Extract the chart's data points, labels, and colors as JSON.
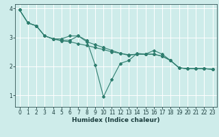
{
  "xlabel": "Humidex (Indice chaleur)",
  "background_color": "#ceecea",
  "grid_color": "#ffffff",
  "line_color": "#2e7d6e",
  "x_values": [
    0,
    1,
    2,
    3,
    4,
    5,
    6,
    7,
    8,
    9,
    10,
    11,
    12,
    13,
    14,
    15,
    16,
    17,
    18,
    19,
    20,
    21,
    22,
    23
  ],
  "series1": [
    3.95,
    3.5,
    3.4,
    3.05,
    2.95,
    2.95,
    3.05,
    3.05,
    2.9,
    2.05,
    0.95,
    1.55,
    2.1,
    2.2,
    2.45,
    2.42,
    2.55,
    2.42,
    2.2,
    1.95,
    1.92,
    1.92,
    1.92,
    1.9
  ],
  "series2": [
    3.95,
    3.5,
    3.4,
    3.05,
    2.95,
    2.9,
    2.9,
    3.05,
    2.85,
    2.75,
    2.65,
    2.55,
    2.45,
    2.4,
    2.42,
    2.42,
    2.42,
    2.35,
    2.2,
    1.95,
    1.92,
    1.92,
    1.92,
    1.9
  ],
  "series3": [
    3.95,
    3.5,
    3.4,
    3.05,
    2.95,
    2.88,
    2.85,
    2.78,
    2.72,
    2.65,
    2.58,
    2.5,
    2.45,
    2.38,
    2.42,
    2.42,
    2.42,
    2.35,
    2.2,
    1.95,
    1.92,
    1.92,
    1.92,
    1.9
  ],
  "ylim": [
    0.6,
    4.15
  ],
  "xlim": [
    -0.5,
    23.5
  ],
  "yticks": [
    1,
    2,
    3,
    4
  ],
  "xticks": [
    0,
    1,
    2,
    3,
    4,
    5,
    6,
    7,
    8,
    9,
    10,
    11,
    12,
    13,
    14,
    15,
    16,
    17,
    18,
    19,
    20,
    21,
    22,
    23
  ],
  "tick_fontsize": 5.5,
  "xlabel_fontsize": 6.5,
  "marker_size": 2.0,
  "line_width": 0.8
}
